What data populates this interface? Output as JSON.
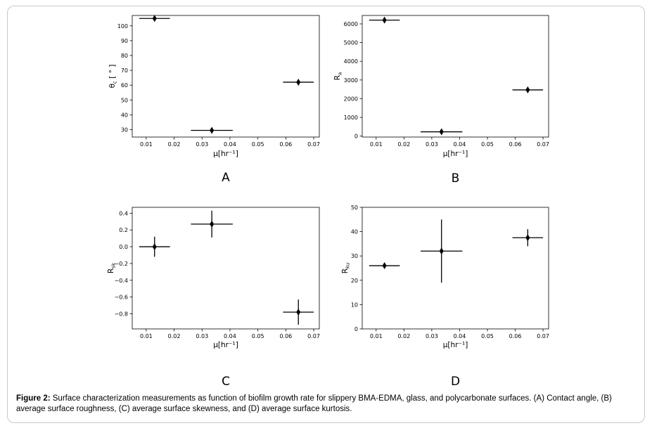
{
  "panels": [
    {
      "letter": "A",
      "ylabel_html": "θ<tspan font-size='7' dy='2.5'>c</tspan><tspan dy='-2.5'> [ ° ]</tspan>",
      "xlabel": "μ[hr⁻¹]"
    },
    {
      "letter": "B",
      "ylabel_html": "R<tspan font-size='7' dy='2.5'>a</tspan>",
      "xlabel": "μ[hr⁻¹]"
    },
    {
      "letter": "C",
      "ylabel_html": "R<tspan font-size='7' dy='2.5'>sk</tspan>",
      "xlabel": "μ[hr⁻¹]"
    },
    {
      "letter": "D",
      "ylabel_html": "R<tspan font-size='7' dy='2.5'>ku</tspan>",
      "xlabel": "μ[hr⁻¹]"
    }
  ],
  "caption": {
    "bold": "Figure 2:",
    "text": " Surface characterization measurements as function of biofilm growth rate for slippery BMA-EDMA, glass, and polycarbonate surfaces. (A) Contact angle, (B) average surface roughness, (C) average surface skewness, and (D) average surface kurtosis."
  },
  "chart_data": [
    {
      "type": "scatter",
      "panel": "A",
      "xlabel": "μ[hr⁻¹]",
      "ylabel": "θc [ ° ]",
      "xlim": [
        0.005,
        0.072
      ],
      "ylim": [
        25,
        107
      ],
      "xticks": [
        0.01,
        0.02,
        0.03,
        0.04,
        0.05,
        0.06,
        0.07
      ],
      "xticklabels": [
        "0.01",
        "0.02",
        "0.03",
        "0.04",
        "0.05",
        "0.06",
        "0.07"
      ],
      "yticks": [
        30,
        40,
        50,
        60,
        70,
        80,
        90,
        100
      ],
      "yticklabels": [
        "30",
        "40",
        "50",
        "60",
        "70",
        "80",
        "90",
        "100"
      ],
      "points": [
        {
          "x": 0.013,
          "y": 105.0,
          "xerr": 0.0055,
          "yerr": 0.5
        },
        {
          "x": 0.0335,
          "y": 29.5,
          "xerr": 0.0075,
          "yerr": 1.5
        },
        {
          "x": 0.0645,
          "y": 62.0,
          "xerr": 0.0055,
          "yerr": 2.0
        }
      ]
    },
    {
      "type": "scatter",
      "panel": "B",
      "xlabel": "μ[hr⁻¹]",
      "ylabel": "Ra",
      "xlim": [
        0.005,
        0.072
      ],
      "ylim": [
        -50,
        6450
      ],
      "xticks": [
        0.01,
        0.02,
        0.03,
        0.04,
        0.05,
        0.06,
        0.07
      ],
      "xticklabels": [
        "0.01",
        "0.02",
        "0.03",
        "0.04",
        "0.05",
        "0.06",
        "0.07"
      ],
      "yticks": [
        0,
        1000,
        2000,
        3000,
        4000,
        5000,
        6000
      ],
      "yticklabels": [
        "0",
        "1000",
        "2000",
        "3000",
        "4000",
        "5000",
        "6000"
      ],
      "points": [
        {
          "x": 0.013,
          "y": 6200,
          "xerr": 0.0055,
          "yerr": 60
        },
        {
          "x": 0.0335,
          "y": 230,
          "xerr": 0.0075,
          "yerr": 50
        },
        {
          "x": 0.0645,
          "y": 2470,
          "xerr": 0.0055,
          "yerr": 60
        }
      ]
    },
    {
      "type": "scatter",
      "panel": "C",
      "xlabel": "μ[hr⁻¹]",
      "ylabel": "Rsk",
      "xlim": [
        0.005,
        0.072
      ],
      "ylim": [
        -0.98,
        0.47
      ],
      "xticks": [
        0.01,
        0.02,
        0.03,
        0.04,
        0.05,
        0.06,
        0.07
      ],
      "xticklabels": [
        "0.01",
        "0.02",
        "0.03",
        "0.04",
        "0.05",
        "0.06",
        "0.07"
      ],
      "yticks": [
        -0.8,
        -0.6,
        -0.4,
        -0.2,
        0.0,
        0.2,
        0.4
      ],
      "yticklabels": [
        "−0.8",
        "−0.6",
        "−0.4",
        "−0.2",
        "0.0",
        "0.2",
        "0.4"
      ],
      "points": [
        {
          "x": 0.013,
          "y": 0.0,
          "xerr": 0.0055,
          "yerr": 0.12
        },
        {
          "x": 0.0335,
          "y": 0.27,
          "xerr": 0.0075,
          "yerr": 0.16
        },
        {
          "x": 0.0645,
          "y": -0.78,
          "xerr": 0.0055,
          "yerr": 0.15
        }
      ]
    },
    {
      "type": "scatter",
      "panel": "D",
      "xlabel": "μ[hr⁻¹]",
      "ylabel": "Rku",
      "xlim": [
        0.005,
        0.072
      ],
      "ylim": [
        0,
        50
      ],
      "xticks": [
        0.01,
        0.02,
        0.03,
        0.04,
        0.05,
        0.06,
        0.07
      ],
      "xticklabels": [
        "0.01",
        "0.02",
        "0.03",
        "0.04",
        "0.05",
        "0.06",
        "0.07"
      ],
      "yticks": [
        0,
        10,
        20,
        30,
        40,
        50
      ],
      "yticklabels": [
        "0",
        "10",
        "20",
        "30",
        "40",
        "50"
      ],
      "points": [
        {
          "x": 0.013,
          "y": 26.0,
          "xerr": 0.0055,
          "yerr": 0.8
        },
        {
          "x": 0.0335,
          "y": 32.0,
          "xerr": 0.0075,
          "yerr": 13.0
        },
        {
          "x": 0.0645,
          "y": 37.5,
          "xerr": 0.0055,
          "yerr": 3.5
        }
      ]
    }
  ]
}
